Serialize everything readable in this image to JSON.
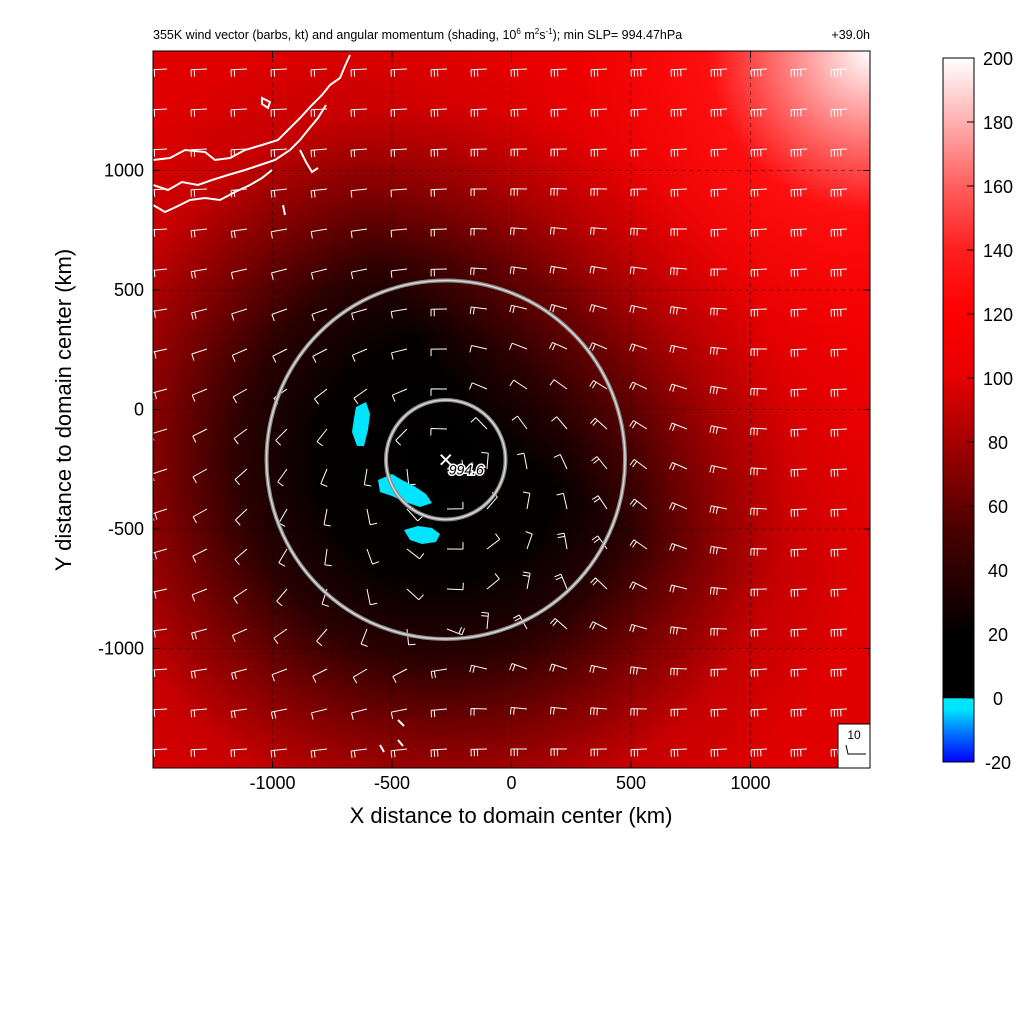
{
  "chart_data": {
    "type": "heatmap",
    "title": "355K wind vector (barbs, kt) and angular momentum (shading, 10",
    "title_sup1": "6",
    "title_mid": " m",
    "title_sup2": "2",
    "title_mid2": "s",
    "title_sup3": "-1",
    "title_end": "); min SLP= 994.47hPa",
    "time_label": "+39.0h",
    "xlabel": "X distance to domain center (km)",
    "ylabel": "Y distance to domain center (km)",
    "xlim": [
      -1500,
      1500
    ],
    "ylim": [
      -1500,
      1500
    ],
    "x_ticks": [
      {
        "value": -1000,
        "label": "-1000"
      },
      {
        "value": -500,
        "label": "-500"
      },
      {
        "value": 0,
        "label": "0"
      },
      {
        "value": 500,
        "label": "500"
      },
      {
        "value": 1000,
        "label": "1000"
      }
    ],
    "y_ticks": [
      {
        "value": 1000,
        "label": "1000"
      },
      {
        "value": 500,
        "label": "500"
      },
      {
        "value": 0,
        "label": "0"
      },
      {
        "value": -500,
        "label": "-500"
      },
      {
        "value": -1000,
        "label": "-1000"
      }
    ],
    "colorbar": {
      "range": [
        -20,
        200
      ],
      "ticks": [
        {
          "value": 200,
          "label": "200"
        },
        {
          "value": 180,
          "label": "180"
        },
        {
          "value": 160,
          "label": "160"
        },
        {
          "value": 140,
          "label": "140"
        },
        {
          "value": 120,
          "label": "120"
        },
        {
          "value": 100,
          "label": "100"
        },
        {
          "value": 80,
          "label": "80"
        },
        {
          "value": 60,
          "label": "60"
        },
        {
          "value": 40,
          "label": "40"
        },
        {
          "value": 20,
          "label": "20"
        },
        {
          "value": 0,
          "label": "0"
        },
        {
          "value": -20,
          "label": "-20"
        }
      ]
    },
    "storm_center": {
      "x": -275,
      "y": -210,
      "label": "994.6"
    },
    "radius_rings_km": [
      250,
      750
    ],
    "reference_barb_label": "10",
    "grid": true,
    "colors": {
      "high": "#ff0000",
      "low": "#000000",
      "max": "#ffffff",
      "negative": "#00e5ff",
      "barb": "#ffffff",
      "ring": "#bbbbbb"
    }
  }
}
